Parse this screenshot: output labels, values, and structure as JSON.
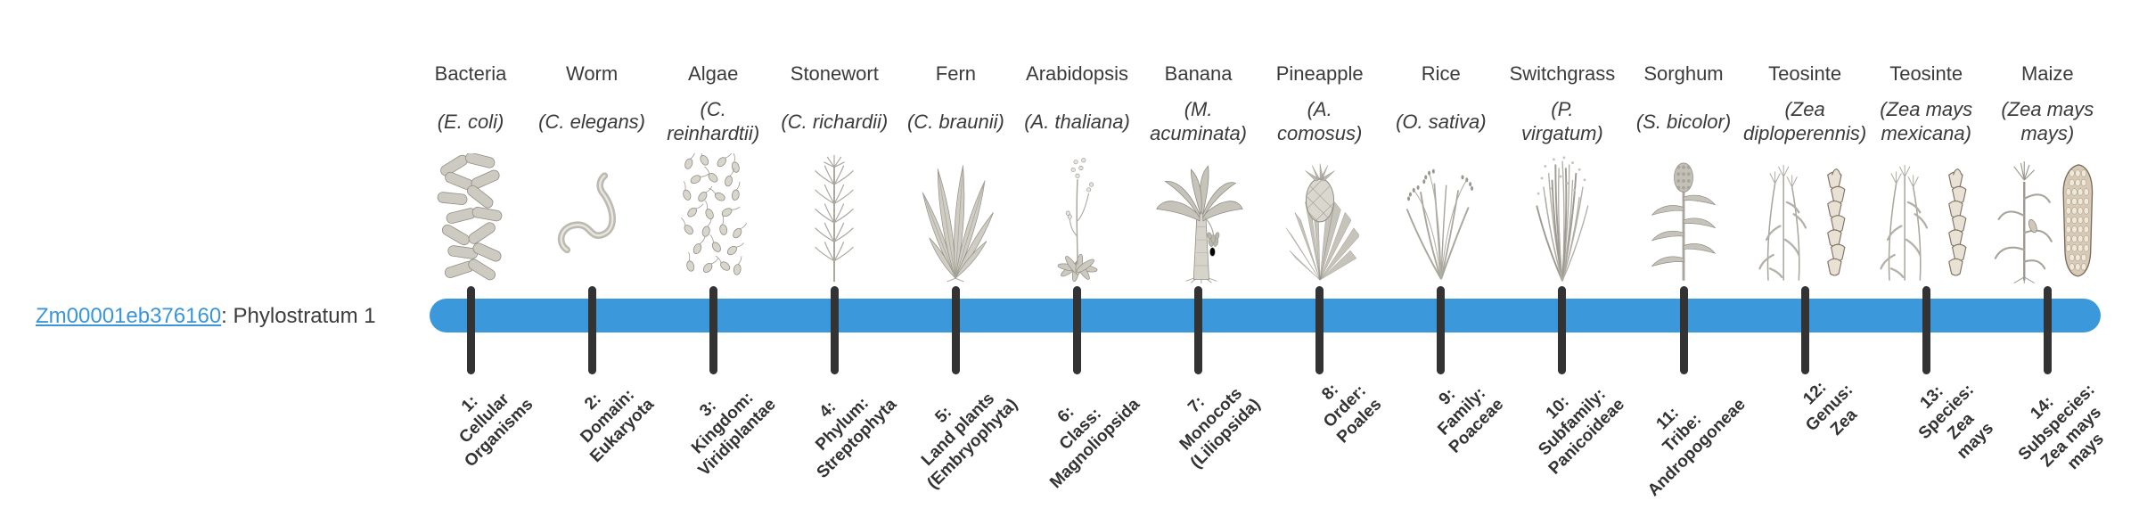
{
  "gene_label": {
    "id": "Zm00001eb376160",
    "suffix": ": Phylostratum 1"
  },
  "colors": {
    "bar_blue": "#3a98db",
    "tick_dark": "#333333",
    "link_blue": "#3a96d9",
    "text_dark": "#3b3b3b"
  },
  "taxa": [
    {
      "common": "Bacteria",
      "latin": "(E. coli)",
      "icon": "bacteria-icon",
      "stratum": "1:\nCellular\nOrganisms"
    },
    {
      "common": "Worm",
      "latin": "(C. elegans)",
      "icon": "worm-icon",
      "stratum": "2:\nDomain:\nEukaryota"
    },
    {
      "common": "Algae",
      "latin": "(C.\nreinhardtii)",
      "icon": "algae-icon",
      "stratum": "3:\nKingdom:\nViridiplantae"
    },
    {
      "common": "Stonewort",
      "latin": "(C. richardii)",
      "icon": "stonewort-icon",
      "stratum": "4:\nPhylum:\nStreptophyta"
    },
    {
      "common": "Fern",
      "latin": "(C. braunii)",
      "icon": "fern-icon",
      "stratum": "5:\nLand plants\n(Embryophyta)"
    },
    {
      "common": "Arabidopsis",
      "latin": "(A. thaliana)",
      "icon": "arabidopsis-icon",
      "stratum": "6:\nClass:\nMagnoliopsida"
    },
    {
      "common": "Banana",
      "latin": "(M.\nacuminata)",
      "icon": "banana-icon",
      "stratum": "7:\nMonocots\n(Liliopsida)"
    },
    {
      "common": "Pineapple",
      "latin": "(A.\ncomosus)",
      "icon": "pineapple-icon",
      "stratum": "8:\nOrder:\nPoales"
    },
    {
      "common": "Rice",
      "latin": "(O. sativa)",
      "icon": "rice-icon",
      "stratum": "9:\nFamily:\nPoaceae"
    },
    {
      "common": "Switchgrass",
      "latin": "(P.\nvirgatum)",
      "icon": "switchgrass-icon",
      "stratum": "10:\nSubfamily:\nPanicoideae"
    },
    {
      "common": "Sorghum",
      "latin": "(S. bicolor)",
      "icon": "sorghum-icon",
      "stratum": "11:\nTribe:\nAndropogoneae"
    },
    {
      "common": "Teosinte",
      "latin": "(Zea\ndiploperennis)",
      "icon": "teosinte-icon",
      "stratum": "12:\nGenus:\nZea"
    },
    {
      "common": "Teosinte",
      "latin": "(Zea mays\nmexicana)",
      "icon": "teosinte-icon",
      "stratum": "13:\nSpecies:\nZea\nmays"
    },
    {
      "common": "Maize",
      "latin": "(Zea mays\nmays)",
      "icon": "maize-icon",
      "stratum": "14:\nSubspecies:\nZea mays\nmays"
    }
  ]
}
